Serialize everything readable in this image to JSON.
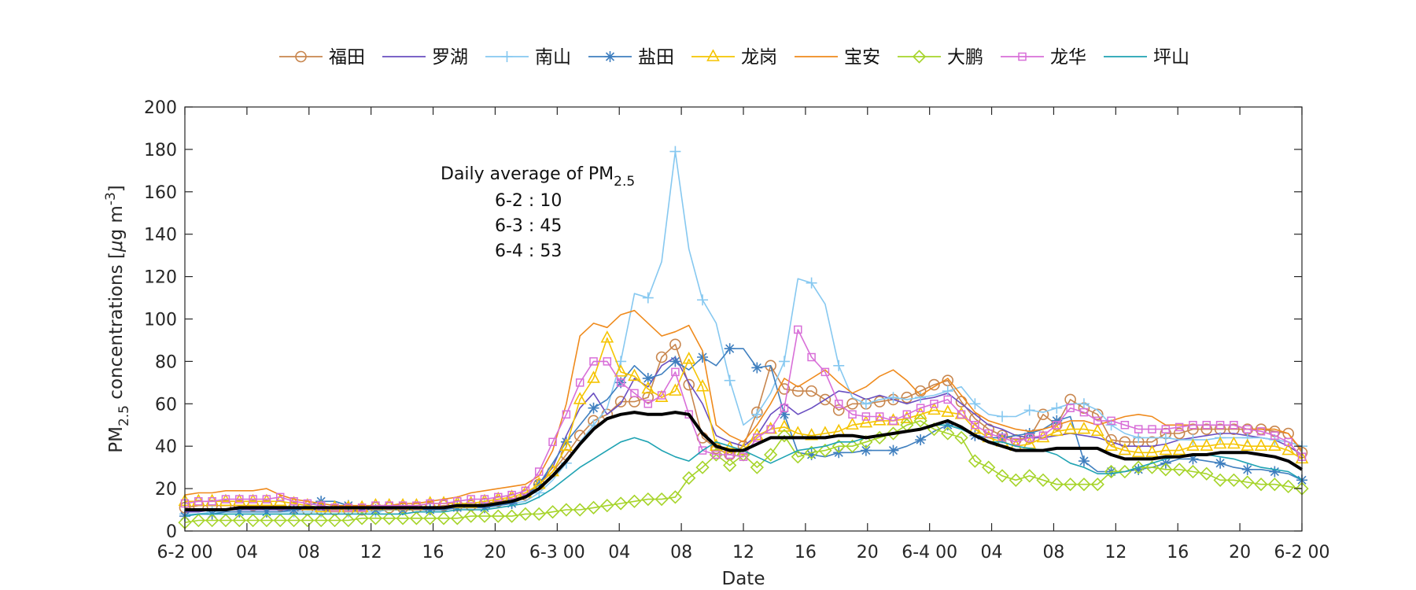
{
  "chart_data": {
    "type": "line",
    "xlabel": "Date",
    "ylabel_prefix": "PM",
    "ylabel_sub": "2.5",
    "ylabel_rest": " concentrations [",
    "ylabel_mu": "μ",
    "ylabel_unit": "g m",
    "ylabel_sup": "-3",
    "ylabel_close": "]",
    "ylim": [
      0,
      200
    ],
    "yticks": [
      0,
      20,
      40,
      60,
      80,
      100,
      120,
      140,
      160,
      180,
      200
    ],
    "xlim": [
      0,
      72
    ],
    "xticks": [
      {
        "x": 0,
        "label": "6-2 00"
      },
      {
        "x": 4,
        "label": "04"
      },
      {
        "x": 8,
        "label": "08"
      },
      {
        "x": 12,
        "label": "12"
      },
      {
        "x": 16,
        "label": "16"
      },
      {
        "x": 20,
        "label": "20"
      },
      {
        "x": 24,
        "label": "6-3 00"
      },
      {
        "x": 28,
        "label": "04"
      },
      {
        "x": 32,
        "label": "08"
      },
      {
        "x": 36,
        "label": "12"
      },
      {
        "x": 40,
        "label": "16"
      },
      {
        "x": 44,
        "label": "20"
      },
      {
        "x": 48,
        "label": "6-4 00"
      },
      {
        "x": 52,
        "label": "04"
      },
      {
        "x": 56,
        "label": "08"
      },
      {
        "x": 60,
        "label": "12"
      },
      {
        "x": 64,
        "label": "16"
      },
      {
        "x": 68,
        "label": "20"
      },
      {
        "x": 72,
        "label": "6-2 00"
      }
    ],
    "grid": false,
    "legend_position": "top",
    "annotation": {
      "title_prefix": "Daily average of PM",
      "title_sub": "2.5",
      "lines": [
        "6-2 : 10",
        "6-3 : 45",
        "6-4 : 53"
      ]
    },
    "series": [
      {
        "name": "福田",
        "color": "#c8864e",
        "marker": "circle",
        "markers_at": "all",
        "values": [
          11,
          12,
          12,
          12,
          12,
          12,
          12,
          12,
          11,
          10,
          10,
          10,
          10,
          10,
          11,
          11,
          11,
          11,
          11,
          12,
          12,
          12,
          13,
          14,
          15,
          17,
          22,
          28,
          36,
          45,
          52,
          55,
          61,
          61,
          63,
          82,
          88,
          69,
          44,
          39,
          36,
          40,
          56,
          78,
          67,
          66,
          66,
          62,
          57,
          60,
          60,
          61,
          62,
          63,
          66,
          69,
          71,
          61,
          53,
          48,
          45,
          43,
          44,
          55,
          50,
          62,
          58,
          55,
          43,
          42,
          42,
          42,
          46,
          46,
          48,
          48,
          48,
          48,
          48,
          48,
          47,
          46,
          37
        ]
      },
      {
        "name": "罗湖",
        "color": "#6a4fc1",
        "marker": "none",
        "values": [
          9,
          9,
          10,
          10,
          10,
          10,
          10,
          10,
          10,
          10,
          10,
          9,
          9,
          10,
          10,
          10,
          10,
          10,
          10,
          11,
          11,
          12,
          12,
          13,
          14,
          17,
          22,
          30,
          45,
          58,
          65,
          55,
          60,
          72,
          68,
          78,
          82,
          70,
          60,
          45,
          42,
          40,
          45,
          55,
          60,
          55,
          58,
          62,
          66,
          65,
          62,
          64,
          62,
          60,
          62,
          63,
          65,
          60,
          55,
          50,
          48,
          45,
          44,
          44,
          45,
          46,
          45,
          44,
          42,
          40,
          40,
          40,
          41,
          43,
          44,
          45,
          46,
          46,
          45,
          44,
          43,
          40,
          36
        ]
      },
      {
        "name": "南山",
        "color": "#86c8f0",
        "marker": "plus",
        "markers_at": "sparse",
        "values": [
          8,
          8,
          9,
          9,
          9,
          9,
          9,
          9,
          9,
          9,
          9,
          9,
          9,
          9,
          9,
          10,
          10,
          10,
          10,
          10,
          11,
          11,
          12,
          12,
          13,
          14,
          18,
          24,
          32,
          42,
          50,
          58,
          80,
          112,
          110,
          127,
          179,
          133,
          109,
          98,
          71,
          50,
          55,
          65,
          80,
          119,
          117,
          107,
          78,
          63,
          60,
          62,
          63,
          62,
          63,
          64,
          66,
          68,
          60,
          55,
          54,
          54,
          57,
          56,
          58,
          60,
          60,
          57,
          50,
          46,
          44,
          44,
          44,
          43,
          43,
          43,
          44,
          44,
          44,
          44,
          43,
          42,
          40
        ]
      },
      {
        "name": "盐田",
        "color": "#3f7fbf",
        "marker": "asterisk",
        "markers_at": "sparse",
        "values": [
          7,
          8,
          8,
          9,
          9,
          9,
          9,
          9,
          10,
          12,
          14,
          14,
          12,
          11,
          10,
          10,
          10,
          10,
          10,
          10,
          11,
          11,
          11,
          12,
          13,
          16,
          22,
          32,
          42,
          50,
          58,
          62,
          70,
          78,
          72,
          74,
          80,
          76,
          82,
          78,
          86,
          86,
          77,
          78,
          55,
          37,
          36,
          35,
          37,
          37,
          38,
          38,
          38,
          40,
          43,
          47,
          50,
          48,
          45,
          44,
          44,
          45,
          46,
          48,
          52,
          54,
          33,
          28,
          28,
          28,
          29,
          30,
          32,
          34,
          34,
          33,
          32,
          30,
          29,
          29,
          28,
          27,
          24
        ]
      },
      {
        "name": "龙岗",
        "color": "#f5c400",
        "marker": "triangle",
        "markers_at": "all",
        "values": [
          14,
          14,
          14,
          14,
          14,
          14,
          14,
          14,
          13,
          12,
          11,
          11,
          11,
          11,
          12,
          12,
          12,
          12,
          13,
          13,
          13,
          13,
          14,
          15,
          16,
          18,
          22,
          28,
          40,
          62,
          72,
          91,
          75,
          73,
          67,
          63,
          66,
          81,
          68,
          40,
          39,
          38,
          45,
          48,
          49,
          46,
          45,
          46,
          47,
          50,
          51,
          52,
          52,
          53,
          55,
          57,
          56,
          55,
          48,
          44,
          42,
          40,
          41,
          44,
          47,
          48,
          48,
          47,
          40,
          38,
          37,
          37,
          38,
          38,
          40,
          40,
          41,
          41,
          40,
          40,
          40,
          38,
          34
        ]
      },
      {
        "name": "宝安",
        "color": "#ef8a1c",
        "marker": "none",
        "values": [
          17,
          18,
          18,
          19,
          19,
          19,
          20,
          17,
          15,
          14,
          13,
          12,
          12,
          12,
          12,
          12,
          13,
          13,
          14,
          15,
          16,
          18,
          19,
          20,
          21,
          22,
          26,
          38,
          60,
          92,
          98,
          96,
          102,
          104,
          98,
          92,
          94,
          97,
          85,
          50,
          45,
          42,
          50,
          60,
          72,
          68,
          72,
          76,
          70,
          65,
          68,
          73,
          76,
          71,
          64,
          68,
          72,
          64,
          56,
          52,
          50,
          48,
          47,
          48,
          50,
          52,
          52,
          50,
          52,
          54,
          55,
          54,
          50,
          50,
          50,
          50,
          50,
          50,
          48,
          48,
          48,
          46,
          38
        ]
      },
      {
        "name": "大鹏",
        "color": "#a6d42a",
        "marker": "diamond",
        "markers_at": "all",
        "values": [
          4,
          5,
          5,
          5,
          5,
          5,
          5,
          5,
          5,
          5,
          5,
          5,
          5,
          6,
          6,
          6,
          6,
          6,
          6,
          6,
          6,
          7,
          7,
          7,
          7,
          8,
          8,
          9,
          10,
          10,
          11,
          12,
          13,
          14,
          15,
          15,
          16,
          25,
          30,
          36,
          31,
          36,
          30,
          36,
          45,
          35,
          37,
          38,
          40,
          40,
          42,
          44,
          46,
          50,
          52,
          48,
          46,
          44,
          33,
          30,
          26,
          24,
          26,
          24,
          22,
          22,
          22,
          22,
          28,
          28,
          30,
          30,
          29,
          29,
          28,
          27,
          24,
          24,
          23,
          22,
          22,
          21,
          20
        ]
      },
      {
        "name": "龙华",
        "color": "#d86fd8",
        "marker": "square",
        "markers_at": "all",
        "values": [
          13,
          14,
          14,
          15,
          15,
          15,
          15,
          16,
          14,
          13,
          12,
          11,
          11,
          11,
          12,
          12,
          12,
          12,
          13,
          13,
          14,
          15,
          15,
          16,
          17,
          19,
          28,
          42,
          55,
          70,
          80,
          80,
          70,
          65,
          60,
          64,
          75,
          55,
          38,
          36,
          36,
          35,
          44,
          48,
          58,
          95,
          82,
          75,
          60,
          55,
          54,
          54,
          52,
          55,
          58,
          60,
          62,
          55,
          50,
          46,
          44,
          42,
          44,
          45,
          50,
          58,
          56,
          52,
          52,
          50,
          48,
          48,
          48,
          49,
          50,
          50,
          50,
          50,
          48,
          47,
          45,
          42,
          35
        ]
      },
      {
        "name": "坪山",
        "color": "#1fa3b3",
        "marker": "none",
        "values": [
          7,
          8,
          8,
          8,
          8,
          8,
          8,
          8,
          8,
          8,
          8,
          8,
          8,
          8,
          8,
          8,
          8,
          9,
          9,
          9,
          10,
          10,
          10,
          11,
          12,
          13,
          16,
          20,
          25,
          30,
          34,
          38,
          42,
          44,
          42,
          38,
          35,
          33,
          38,
          42,
          40,
          38,
          35,
          32,
          35,
          38,
          39,
          40,
          42,
          42,
          44,
          45,
          46,
          47,
          48,
          50,
          50,
          48,
          45,
          42,
          42,
          40,
          39,
          38,
          36,
          32,
          30,
          27,
          27,
          28,
          30,
          32,
          34,
          35,
          36,
          36,
          35,
          34,
          32,
          30,
          29,
          28,
          24
        ]
      },
      {
        "color": "#000000",
        "marker": "none",
        "width": 4,
        "values": [
          10,
          10,
          10,
          10,
          11,
          11,
          11,
          11,
          11,
          11,
          11,
          11,
          11,
          11,
          11,
          11,
          11,
          11,
          11,
          11,
          12,
          12,
          12,
          13,
          14,
          16,
          20,
          26,
          33,
          41,
          48,
          53,
          55,
          56,
          55,
          55,
          56,
          55,
          46,
          40,
          38,
          38,
          41,
          44,
          44,
          44,
          44,
          44,
          45,
          45,
          44,
          45,
          46,
          47,
          48,
          50,
          52,
          49,
          45,
          42,
          40,
          38,
          38,
          38,
          39,
          39,
          39,
          39,
          36,
          34,
          34,
          34,
          35,
          35,
          36,
          36,
          37,
          37,
          37,
          36,
          35,
          33,
          29
        ]
      }
    ]
  }
}
